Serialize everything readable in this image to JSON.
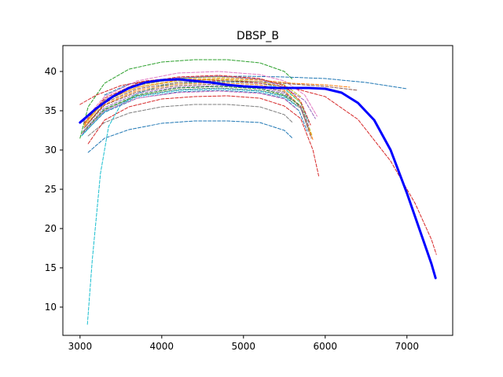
{
  "chart_data": {
    "type": "line",
    "title": "DBSP_B",
    "xlabel": "",
    "ylabel": "",
    "xlim": [
      2790,
      7560
    ],
    "ylim": [
      6.4,
      43.3
    ],
    "xticks": [
      3000,
      4000,
      5000,
      6000,
      7000
    ],
    "yticks": [
      10,
      15,
      20,
      25,
      30,
      35,
      40
    ],
    "grid": false,
    "legend": "none",
    "series": [
      {
        "style": "bold",
        "color": "#0000ff",
        "x": [
          3000,
          3200,
          3400,
          3600,
          3800,
          4000,
          4200,
          4400,
          4600,
          4800,
          5000,
          5200,
          5400,
          5600,
          5800,
          6000,
          6200,
          6400,
          6600,
          6800,
          7000,
          7100,
          7200,
          7300,
          7350
        ],
        "y": [
          33.5,
          35.3,
          36.8,
          37.9,
          38.6,
          38.9,
          39.0,
          38.8,
          38.6,
          38.3,
          38.1,
          38.0,
          37.9,
          37.9,
          37.9,
          37.8,
          37.3,
          36.0,
          33.8,
          30.0,
          24.5,
          21.5,
          18.5,
          15.5,
          13.7
        ]
      },
      {
        "color": "#2ca02c",
        "x": [
          3000,
          3100,
          3300,
          3600,
          4000,
          4400,
          4800,
          5200,
          5500,
          5600
        ],
        "y": [
          31.5,
          35.5,
          38.5,
          40.3,
          41.2,
          41.5,
          41.5,
          41.1,
          40.0,
          39.0
        ]
      },
      {
        "color": "#1f77b4",
        "x": [
          3100,
          3300,
          3600,
          4000,
          4400,
          4800,
          5200,
          5500,
          5600
        ],
        "y": [
          29.7,
          31.5,
          32.6,
          33.4,
          33.7,
          33.7,
          33.5,
          32.5,
          31.5
        ]
      },
      {
        "color": "#7f7f7f",
        "x": [
          3100,
          3300,
          3600,
          4000,
          4400,
          4800,
          5200,
          5500,
          5600
        ],
        "y": [
          31.8,
          33.5,
          34.7,
          35.5,
          35.8,
          35.8,
          35.5,
          34.5,
          33.5
        ]
      },
      {
        "color": "#d62728",
        "x": [
          3100,
          3300,
          3600,
          4000,
          4400,
          4800,
          5200,
          5500,
          5700,
          5850,
          5920
        ],
        "y": [
          30.8,
          33.8,
          35.5,
          36.5,
          36.8,
          36.9,
          36.6,
          35.6,
          34.0,
          30.0,
          26.7
        ]
      },
      {
        "color": "#17becf",
        "x": [
          3090,
          3150,
          3250,
          3350,
          3500,
          3700,
          4000,
          4400,
          4800,
          5200,
          5500,
          5700,
          5800
        ],
        "y": [
          7.8,
          16.0,
          27.0,
          33.0,
          35.8,
          37.2,
          38.2,
          38.6,
          38.7,
          38.5,
          37.8,
          36.0,
          33.5
        ]
      },
      {
        "color": "#1f77b4",
        "x": [
          3300,
          3600,
          4000,
          4500,
          5000,
          5500,
          6000,
          6500,
          7000
        ],
        "y": [
          37.0,
          38.4,
          39.0,
          39.3,
          39.4,
          39.3,
          39.1,
          38.6,
          37.8
        ]
      },
      {
        "color": "#d62728",
        "x": [
          3000,
          3200,
          3500,
          3800,
          4000,
          4400,
          4800,
          5200,
          5600,
          6000,
          6400,
          6800,
          7100,
          7300,
          7360
        ],
        "y": [
          35.8,
          37.0,
          38.2,
          38.8,
          39.0,
          39.0,
          38.8,
          38.5,
          37.9,
          36.8,
          33.9,
          28.6,
          23.2,
          18.6,
          16.7
        ]
      },
      {
        "color": "#e377c2",
        "x": [
          3050,
          3300,
          3700,
          4200,
          4700,
          5200,
          5500,
          5750,
          5900
        ],
        "y": [
          33.8,
          36.8,
          38.8,
          39.8,
          40.0,
          39.6,
          38.8,
          37.0,
          34.3
        ]
      },
      {
        "color": "#bcbd22",
        "x": [
          3050,
          3300,
          3700,
          4200,
          4700,
          5200,
          5500,
          5700,
          5840
        ],
        "y": [
          33.2,
          36.2,
          38.0,
          38.8,
          39.0,
          38.7,
          38.0,
          36.0,
          31.8
        ]
      },
      {
        "color": "#ff7f0e",
        "x": [
          3050,
          3300,
          3700,
          4200,
          4700,
          5200,
          5500,
          5700,
          5850
        ],
        "y": [
          33.0,
          35.8,
          37.6,
          38.4,
          38.6,
          38.3,
          37.6,
          35.5,
          31.3
        ]
      },
      {
        "color": "#8c564b",
        "x": [
          3050,
          3300,
          3700,
          4200,
          4700,
          5200,
          5500,
          5700,
          5830
        ],
        "y": [
          32.8,
          35.7,
          37.4,
          38.2,
          38.4,
          38.1,
          37.4,
          35.4,
          31.5
        ]
      },
      {
        "color": "#9467bd",
        "x": [
          3040,
          3300,
          3700,
          4200,
          4700,
          5200,
          5500,
          5700,
          5800
        ],
        "y": [
          32.4,
          35.4,
          37.2,
          38.0,
          38.2,
          37.9,
          37.2,
          35.6,
          33.0
        ]
      },
      {
        "color": "#7f7f7f",
        "x": [
          3040,
          3300,
          3700,
          4200,
          4700,
          5200,
          5500,
          5700,
          5800
        ],
        "y": [
          32.2,
          35.1,
          36.9,
          37.7,
          37.9,
          37.6,
          36.9,
          35.3,
          32.6
        ]
      },
      {
        "color": "#1f77b4",
        "x": [
          3030,
          3300,
          3700,
          4200,
          4700,
          5200,
          5500,
          5680,
          5780
        ],
        "y": [
          32.0,
          34.8,
          36.6,
          37.4,
          37.6,
          37.3,
          36.6,
          35.0,
          32.4
        ]
      },
      {
        "color": "#2ca02c",
        "x": [
          3030,
          3300,
          3700,
          4200,
          4700,
          5200,
          5500,
          5680
        ],
        "y": [
          32.2,
          35.2,
          37.0,
          37.9,
          38.1,
          37.8,
          37.0,
          35.8
        ]
      },
      {
        "color": "#17becf",
        "x": [
          3020,
          3300,
          3700,
          4200,
          4700,
          5200,
          5500,
          5650
        ],
        "y": [
          31.8,
          34.9,
          36.8,
          37.6,
          37.8,
          37.5,
          36.8,
          35.6
        ]
      },
      {
        "color": "#e377c2",
        "x": [
          3020,
          3300,
          3700,
          4200,
          4700,
          5200,
          5500,
          5650
        ],
        "y": [
          32.0,
          35.0,
          36.6,
          37.3,
          37.5,
          37.2,
          36.5,
          35.2
        ]
      },
      {
        "color": "#bcbd22",
        "x": [
          3060,
          3300,
          3700,
          4200,
          4700,
          5200,
          5500,
          5700
        ],
        "y": [
          33.5,
          36.4,
          38.2,
          39.1,
          39.3,
          39.0,
          38.3,
          36.8
        ]
      },
      {
        "color": "#ff7f0e",
        "x": [
          3060,
          3300,
          3700,
          4200,
          4700,
          5200,
          5600,
          6000,
          6300
        ],
        "y": [
          33.3,
          36.3,
          38.0,
          38.9,
          39.1,
          38.9,
          38.5,
          38.3,
          38.0
        ]
      },
      {
        "color": "#8c564b",
        "x": [
          3070,
          3300,
          3700,
          4200,
          4700,
          5200,
          5600,
          6000,
          6400
        ],
        "y": [
          33.0,
          36.0,
          37.8,
          38.6,
          38.8,
          38.7,
          38.4,
          38.1,
          37.6
        ]
      },
      {
        "color": "#9467bd",
        "x": [
          3040,
          3300,
          3700,
          4200,
          4700,
          5200,
          5500,
          5750,
          5880
        ],
        "y": [
          33.6,
          36.4,
          38.3,
          39.2,
          39.4,
          39.0,
          38.0,
          36.3,
          34.0
        ]
      },
      {
        "color": "#d62728",
        "x": [
          3050,
          3300,
          3700,
          4200,
          4700,
          5200,
          5500,
          5700,
          5820
        ],
        "y": [
          33.4,
          36.6,
          38.5,
          39.3,
          39.5,
          39.1,
          38.2,
          36.2,
          33.2
        ]
      }
    ]
  }
}
